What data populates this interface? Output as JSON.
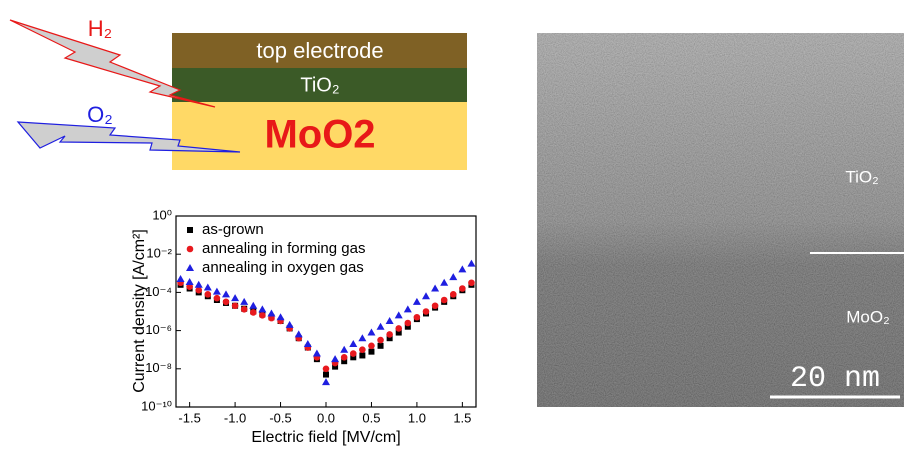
{
  "diagram": {
    "layers": [
      "top electrode",
      "TiO₂",
      "MoO2"
    ],
    "gases": [
      "H₂",
      "O₂"
    ]
  },
  "chart_data": {
    "type": "scatter",
    "xlabel": "Electric field [MV/cm]",
    "ylabel": "Current density [A/cm²]",
    "log_y": true,
    "xlim": [
      -1.65,
      1.65
    ],
    "xticks": [
      -1.5,
      {
        "value": -1,
        "label": "-1.0"
      },
      -0.5,
      {
        "value": 0,
        "label": "0.0"
      },
      0.5,
      {
        "value": 1,
        "label": "1.0"
      },
      1.5
    ],
    "ylim": [
      1e-10,
      1
    ],
    "yticks": [
      {
        "value": 1e-10,
        "label": "10⁻¹⁰"
      },
      {
        "value": 1e-08,
        "label": "10⁻⁸"
      },
      {
        "value": 1e-06,
        "label": "10⁻⁶"
      },
      {
        "value": 0.0001,
        "label": "10⁻⁴"
      },
      {
        "value": 0.01,
        "label": "10⁻²"
      },
      {
        "value": 1,
        "label": "10⁰"
      }
    ],
    "legend": "upper left",
    "x": [
      -1.6,
      -1.5,
      -1.4,
      -1.3,
      -1.2,
      -1.1,
      -1.0,
      -0.9,
      -0.8,
      -0.7,
      -0.6,
      -0.5,
      -0.4,
      -0.3,
      -0.2,
      -0.1,
      0,
      0.1,
      0.2,
      0.3,
      0.4,
      0.5,
      0.6,
      0.7,
      0.8,
      0.9,
      1.0,
      1.1,
      1.2,
      1.3,
      1.4,
      1.5,
      1.6
    ],
    "series": [
      {
        "name": "as-grown",
        "color": "#000000",
        "marker": "square",
        "values": [
          0.00025,
          0.00016,
          0.0001,
          6.3e-05,
          4e-05,
          2.8e-05,
          2e-05,
          1.4e-05,
          1e-05,
          7.1e-06,
          5e-06,
          3.2e-06,
          1.3e-06,
          4e-07,
          1.3e-07,
          3.2e-08,
          5e-09,
          1.3e-08,
          2.5e-08,
          4e-08,
          5e-08,
          7.9e-08,
          1.6e-07,
          4e-07,
          7.9e-07,
          1.6e-06,
          4e-06,
          7.9e-06,
          1.6e-05,
          3.2e-05,
          6.3e-05,
          0.00013,
          0.00025
        ]
      },
      {
        "name": "annealing in forming gas",
        "color": "#e8191e",
        "marker": "circle",
        "values": [
          0.00032,
          0.0002,
          0.00013,
          7.9e-05,
          5e-05,
          3.2e-05,
          2e-05,
          1.3e-05,
          8.9e-06,
          6.3e-06,
          4.5e-06,
          3.2e-06,
          1.3e-06,
          4e-07,
          1.3e-07,
          4e-08,
          1e-08,
          2e-08,
          4e-08,
          6.3e-08,
          1e-07,
          1.6e-07,
          3.2e-07,
          6.3e-07,
          1.3e-06,
          2.5e-06,
          5e-06,
          1e-05,
          2e-05,
          4e-05,
          7.9e-05,
          0.00016,
          0.00032
        ]
      },
      {
        "name": "annealing in oxygen gas",
        "color": "#1f1fe0",
        "marker": "triangle",
        "values": [
          0.0005,
          0.00035,
          0.00025,
          0.00018,
          0.00011,
          7.9e-05,
          5e-05,
          3.2e-05,
          2e-05,
          1.3e-05,
          7.9e-06,
          5e-06,
          2e-06,
          6.3e-07,
          2e-07,
          6.3e-08,
          2e-09,
          3.2e-08,
          1e-07,
          2e-07,
          4e-07,
          7.9e-07,
          1.6e-06,
          3.2e-06,
          6.3e-06,
          1.3e-05,
          3.2e-05,
          6.3e-05,
          0.00016,
          0.00032,
          0.00063,
          0.0016,
          0.0032
        ]
      }
    ]
  },
  "image": {
    "labels": [
      "TiO₂",
      "MoO₂"
    ],
    "scale_bar": "20 nm"
  }
}
